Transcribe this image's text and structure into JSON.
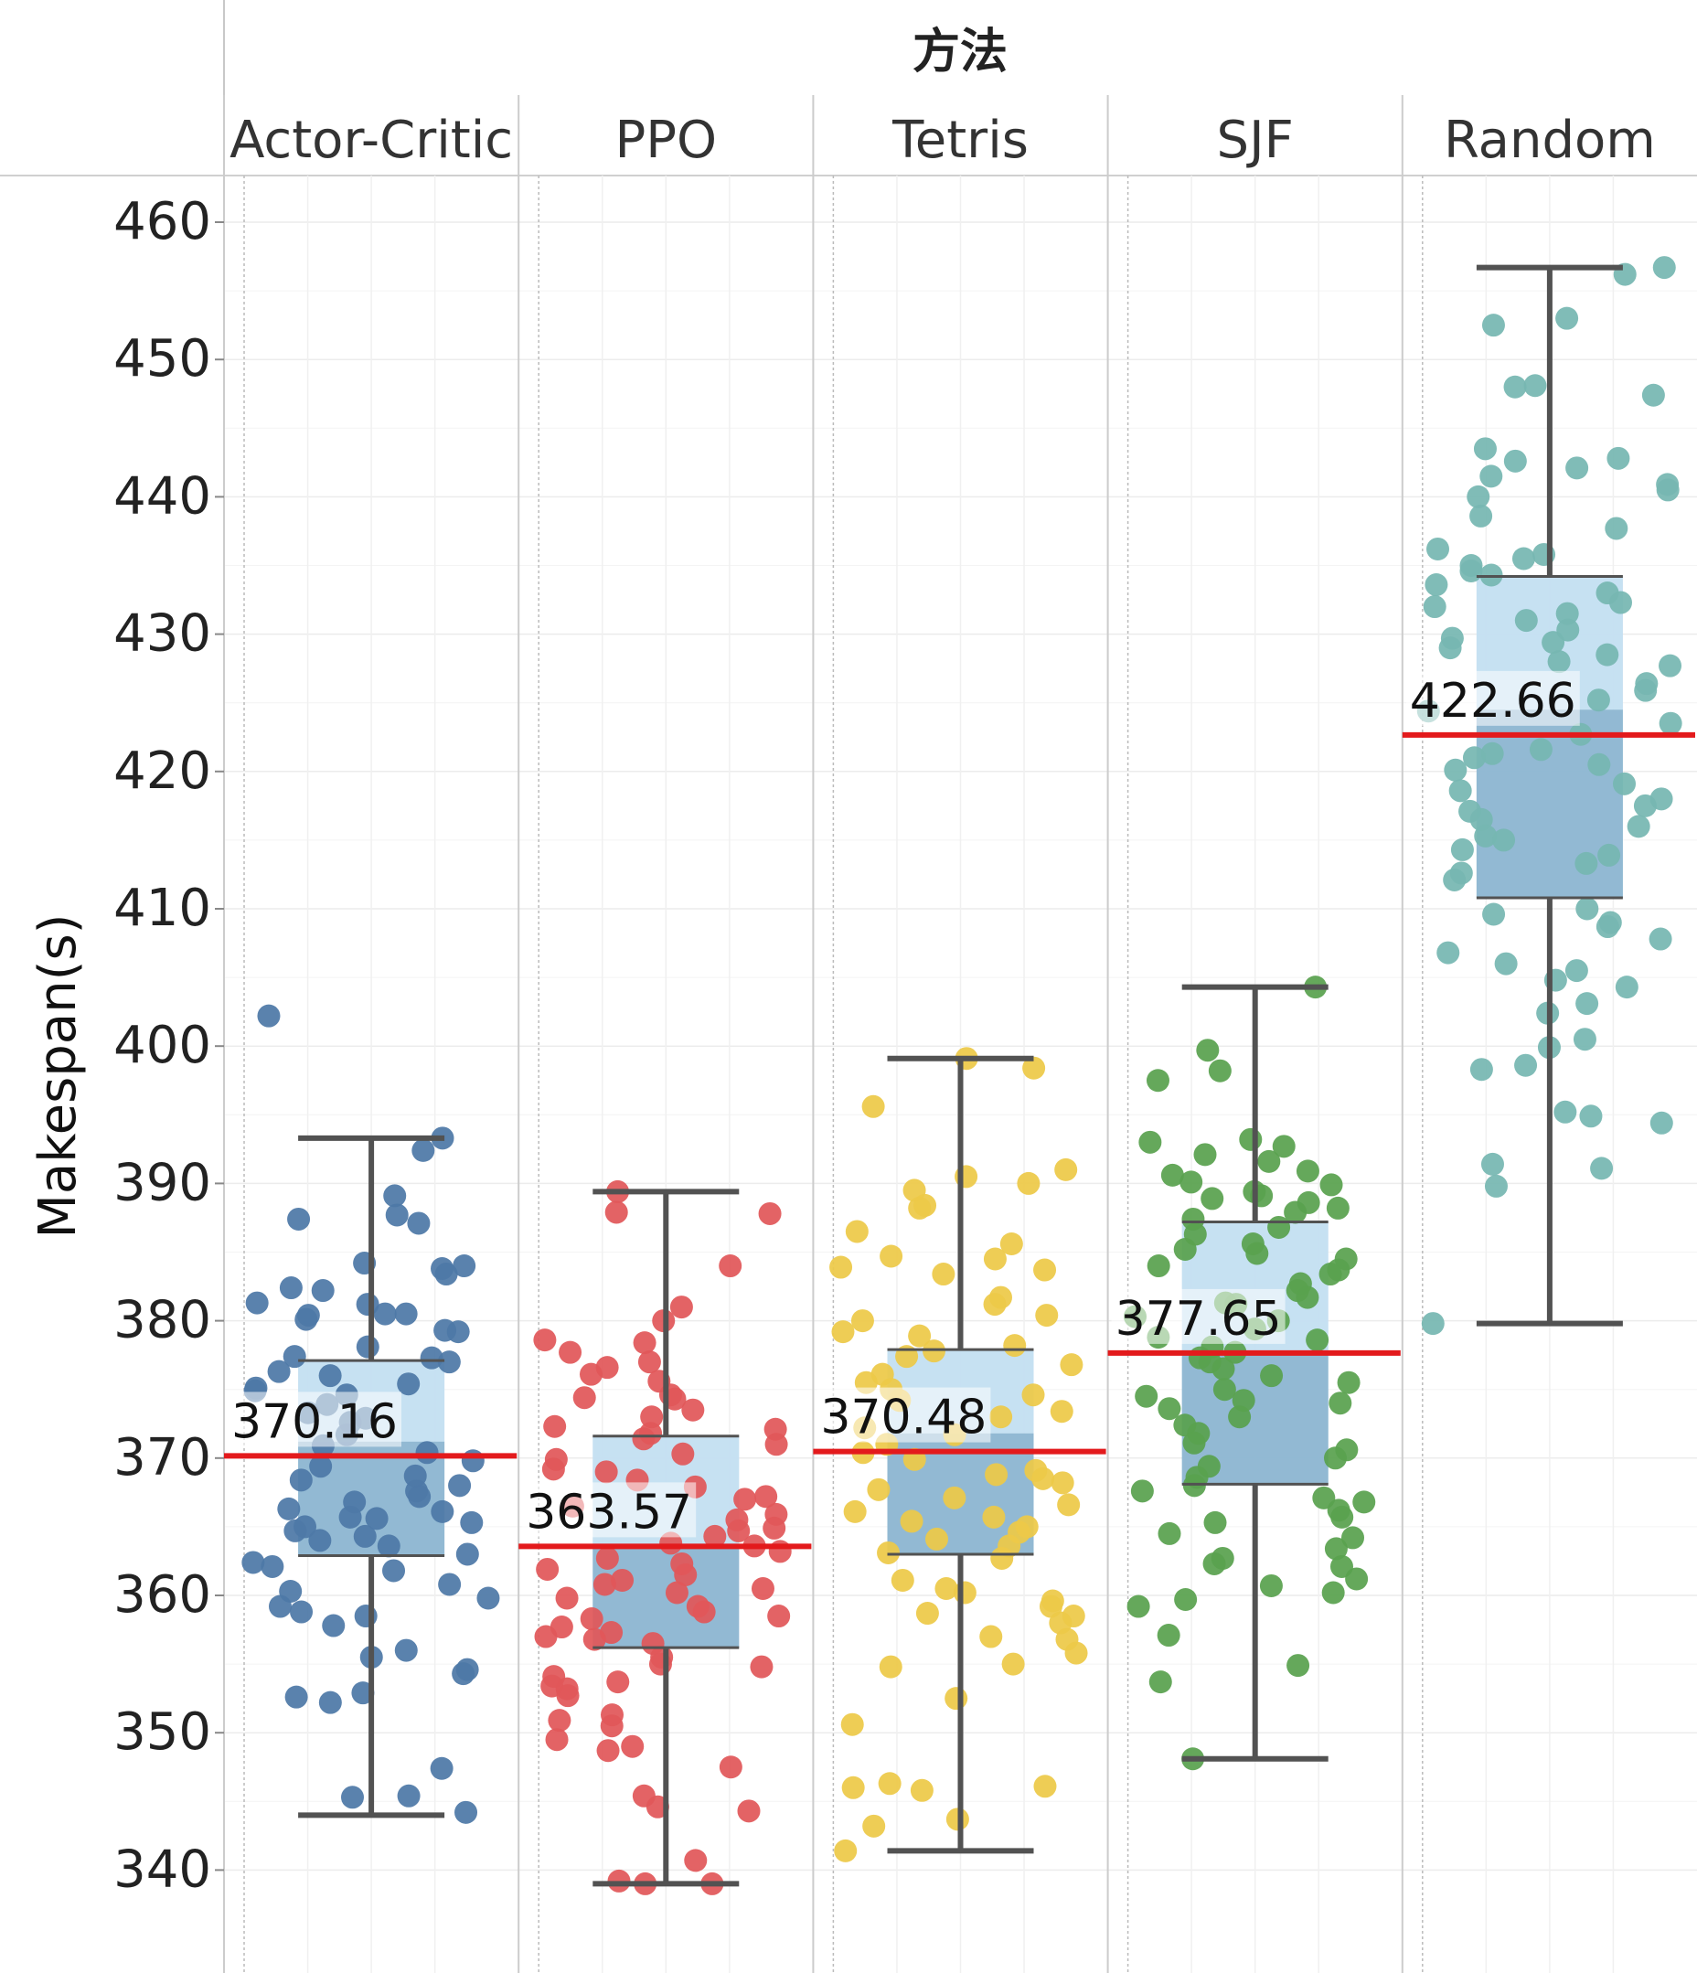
{
  "chart_data": {
    "type": "box",
    "title": "方法",
    "xlabel": "",
    "ylabel": "Makespan(s)",
    "ylim": [
      336,
      463
    ],
    "yticks": [
      340,
      350,
      360,
      370,
      380,
      390,
      400,
      410,
      420,
      430,
      440,
      450,
      460
    ],
    "grid": true,
    "legend": "none",
    "mean_line_color": "#e31a1c",
    "box_upper_color": "#c4dff2",
    "box_lower_color": "#8fb7d2",
    "whisker_color": "#525252",
    "series": [
      {
        "name": "Actor-Critic",
        "color": "#4e79a7",
        "min": 344,
        "q1": 362.9,
        "median": 371.2,
        "q3": 377.1,
        "max": 393.3,
        "mean": 370.16,
        "mean_label": "370.16",
        "points": [
          402.2,
          393.3,
          392.4,
          389.1,
          387.7,
          387.4,
          387.1,
          384.2,
          384.0,
          383.8,
          383.4,
          382.4,
          382.2,
          381.3,
          381.2,
          380.5,
          380.5,
          380.4,
          380.1,
          379.3,
          379.2,
          378.1,
          377.4,
          377.3,
          377.0,
          376.3,
          376.0,
          375.4,
          375.1,
          374.9,
          374.6,
          373.9,
          373.3,
          372.9,
          372.6,
          371.7,
          370.9,
          370.4,
          369.8,
          369.4,
          368.7,
          368.4,
          368.0,
          367.6,
          367.2,
          366.8,
          366.3,
          366.1,
          365.7,
          365.6,
          365.3,
          365.0,
          364.7,
          364.3,
          364.0,
          363.6,
          363.0,
          362.4,
          362.1,
          361.8,
          360.8,
          360.3,
          359.8,
          359.2,
          358.8,
          358.5,
          357.8,
          356.0,
          355.5,
          354.6,
          354.3,
          352.9,
          352.6,
          352.2,
          347.4,
          345.4,
          345.3,
          344.2
        ]
      },
      {
        "name": "PPO",
        "color": "#e15759",
        "min": 339,
        "q1": 356.2,
        "median": 363.7,
        "q3": 371.6,
        "max": 389.4,
        "mean": 363.57,
        "mean_label": "363.57",
        "points": [
          389.4,
          387.9,
          387.8,
          384.0,
          381.0,
          380.0,
          378.6,
          378.4,
          377.7,
          377.0,
          376.6,
          376.1,
          375.6,
          374.6,
          374.4,
          374.3,
          373.5,
          373.0,
          372.3,
          372.1,
          371.8,
          371.4,
          371.0,
          370.3,
          369.9,
          369.2,
          369.0,
          368.4,
          367.9,
          367.2,
          367.0,
          366.5,
          365.9,
          365.5,
          364.9,
          364.7,
          364.3,
          363.8,
          363.6,
          363.2,
          362.7,
          362.3,
          361.9,
          361.5,
          361.1,
          360.8,
          360.5,
          360.2,
          359.8,
          359.2,
          358.8,
          358.5,
          358.3,
          357.7,
          357.3,
          357.0,
          356.8,
          356.5,
          355.5,
          355.0,
          354.8,
          354.1,
          353.7,
          353.4,
          353.2,
          352.7,
          351.3,
          350.9,
          350.5,
          349.5,
          349.0,
          348.7,
          347.5,
          345.4,
          344.6,
          344.3,
          340.7,
          339.2,
          339.0,
          339.0
        ]
      },
      {
        "name": "Tetris",
        "color": "#edc948",
        "min": 341.4,
        "q1": 363.0,
        "median": 371.8,
        "q3": 377.9,
        "max": 399.1,
        "mean": 370.48,
        "mean_label": "370.48",
        "points": [
          399.1,
          398.4,
          395.6,
          391.0,
          390.5,
          390.0,
          389.5,
          388.4,
          388.2,
          386.5,
          385.6,
          384.7,
          384.5,
          383.9,
          383.7,
          383.4,
          381.7,
          381.2,
          380.4,
          380.0,
          379.2,
          378.9,
          378.2,
          377.8,
          377.4,
          376.8,
          376.1,
          375.5,
          375.0,
          374.6,
          374.2,
          373.4,
          373.0,
          372.2,
          371.7,
          371.0,
          370.4,
          369.9,
          369.1,
          368.8,
          368.5,
          368.2,
          367.7,
          367.1,
          366.6,
          366.1,
          365.7,
          365.4,
          365.0,
          364.6,
          364.1,
          363.6,
          363.1,
          362.7,
          361.1,
          360.5,
          360.2,
          359.6,
          359.2,
          358.7,
          358.5,
          358.0,
          357.0,
          356.8,
          355.8,
          355.0,
          354.8,
          352.5,
          350.6,
          346.3,
          346.1,
          346.0,
          345.8,
          343.7,
          343.2,
          341.4
        ]
      },
      {
        "name": "SJF",
        "color": "#59a14f",
        "min": 348.1,
        "q1": 368.1,
        "median": 377.6,
        "q3": 387.2,
        "max": 404.3,
        "mean": 377.65,
        "mean_label": "377.65",
        "points": [
          404.3,
          399.7,
          398.2,
          397.5,
          393.2,
          393.0,
          392.7,
          392.1,
          391.6,
          390.9,
          390.6,
          390.1,
          389.9,
          389.4,
          389.1,
          388.9,
          388.6,
          388.2,
          387.9,
          387.4,
          386.8,
          386.3,
          385.6,
          385.2,
          384.9,
          384.5,
          384.0,
          383.7,
          383.4,
          382.7,
          382.2,
          381.7,
          381.3,
          381.2,
          380.3,
          380.0,
          379.4,
          378.8,
          378.6,
          378.1,
          377.7,
          377.3,
          377.0,
          376.5,
          376.0,
          375.5,
          375.0,
          374.5,
          374.2,
          374.0,
          373.6,
          373.0,
          372.4,
          371.8,
          371.1,
          370.6,
          370.0,
          369.4,
          368.6,
          368.0,
          367.6,
          367.1,
          366.8,
          366.2,
          365.7,
          365.3,
          364.5,
          364.2,
          363.4,
          362.7,
          362.3,
          362.1,
          361.2,
          360.7,
          360.2,
          359.7,
          359.2,
          357.1,
          354.9,
          353.7,
          348.1
        ]
      },
      {
        "name": "Random",
        "color": "#76b7b2",
        "min": 379.8,
        "q1": 410.8,
        "median": 424.5,
        "q3": 434.2,
        "max": 456.7,
        "mean": 422.66,
        "mean_label": "422.66",
        "points": [
          456.7,
          456.2,
          453.0,
          452.5,
          448.1,
          448.0,
          447.4,
          443.5,
          442.8,
          442.6,
          442.1,
          441.5,
          440.9,
          440.5,
          440.0,
          438.6,
          437.7,
          436.2,
          435.8,
          435.5,
          435.0,
          434.6,
          434.3,
          433.6,
          433.0,
          432.3,
          432.0,
          431.5,
          431.0,
          430.3,
          429.7,
          429.4,
          429.0,
          428.5,
          428.0,
          427.7,
          426.4,
          425.9,
          425.2,
          424.4,
          423.5,
          422.7,
          421.6,
          421.3,
          421.0,
          420.5,
          420.1,
          419.1,
          418.6,
          418.0,
          417.5,
          417.1,
          416.5,
          416.0,
          415.3,
          415.0,
          414.3,
          413.9,
          413.3,
          412.6,
          412.1,
          410.0,
          409.6,
          409.0,
          408.7,
          407.8,
          406.8,
          406.0,
          405.5,
          404.8,
          404.3,
          403.1,
          402.4,
          400.5,
          399.9,
          398.6,
          398.3,
          395.2,
          394.9,
          394.4,
          391.4,
          391.1,
          389.8,
          379.8
        ]
      }
    ]
  }
}
